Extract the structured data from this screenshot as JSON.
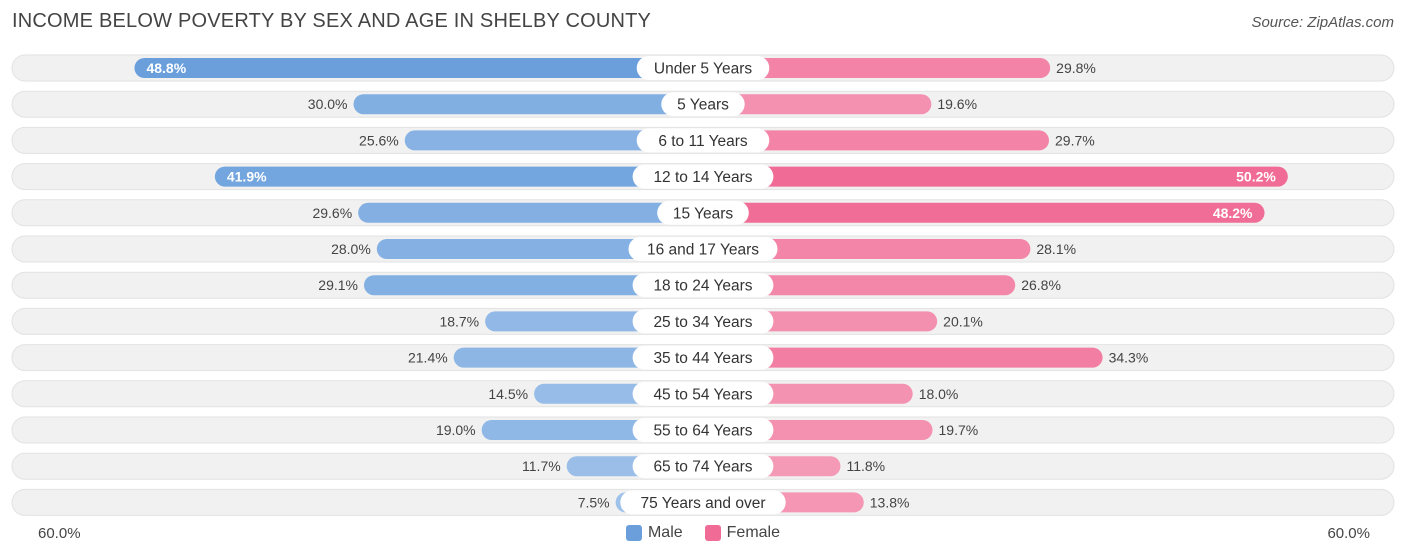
{
  "title": "INCOME BELOW POVERTY BY SEX AND AGE IN SHELBY COUNTY",
  "source": "Source: ZipAtlas.com",
  "axis": {
    "left_label": "60.0%",
    "right_label": "60.0%"
  },
  "legend": {
    "male_label": "Male",
    "female_label": "Female"
  },
  "colors": {
    "male": "#6a9fdc",
    "male_light": "#a9c8ec",
    "female": "#f06b96",
    "female_light": "#f7a8c0",
    "track": "#f1f1f1"
  },
  "chart_data": {
    "type": "bar",
    "orientation": "horizontal-diverging",
    "title": "INCOME BELOW POVERTY BY SEX AND AGE IN SHELBY COUNTY",
    "xlim": [
      -60,
      60
    ],
    "categories": [
      "Under 5 Years",
      "5 Years",
      "6 to 11 Years",
      "12 to 14 Years",
      "15 Years",
      "16 and 17 Years",
      "18 to 24 Years",
      "25 to 34 Years",
      "35 to 44 Years",
      "45 to 54 Years",
      "55 to 64 Years",
      "65 to 74 Years",
      "75 Years and over"
    ],
    "series": [
      {
        "name": "Male",
        "values": [
          48.8,
          30.0,
          25.6,
          41.9,
          29.6,
          28.0,
          29.1,
          18.7,
          21.4,
          14.5,
          19.0,
          11.7,
          7.5
        ]
      },
      {
        "name": "Female",
        "values": [
          29.8,
          19.6,
          29.7,
          50.2,
          48.2,
          28.1,
          26.8,
          20.1,
          34.3,
          18.0,
          19.7,
          11.8,
          13.8
        ]
      }
    ]
  }
}
